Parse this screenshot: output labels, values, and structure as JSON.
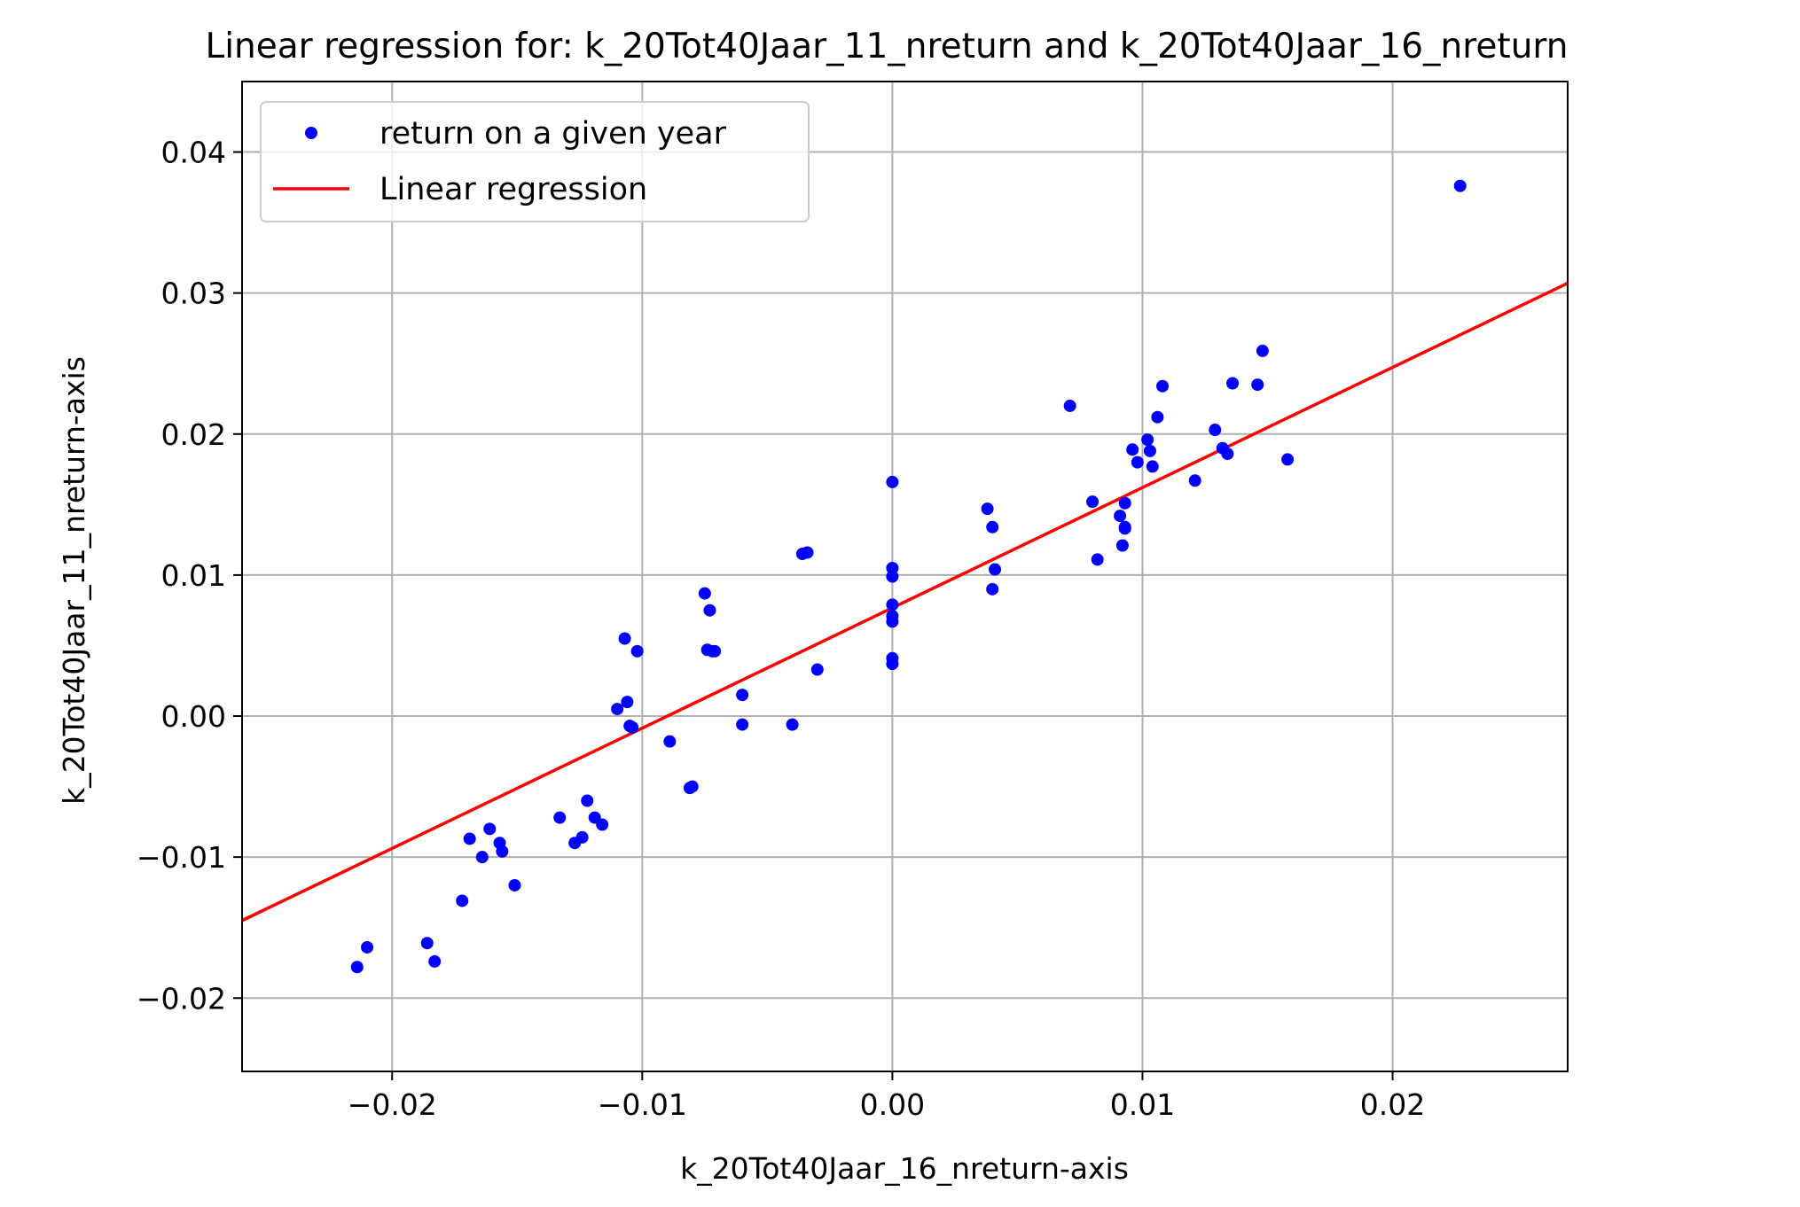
{
  "chart_data": {
    "type": "scatter",
    "title": "Linear regression for: k_20Tot40Jaar_11_nreturn and k_20Tot40Jaar_16_nreturn",
    "xlabel": "k_20Tot40Jaar_16_nreturn-axis",
    "ylabel": "k_20Tot40Jaar_11_nreturn-axis",
    "xlim": [
      -0.026,
      0.027
    ],
    "ylim": [
      -0.0252,
      0.045
    ],
    "xticks": [
      -0.02,
      -0.01,
      0.0,
      0.01,
      0.02
    ],
    "xtick_labels": [
      "−0.02",
      "−0.01",
      "0.00",
      "0.01",
      "0.02"
    ],
    "yticks": [
      -0.02,
      -0.01,
      0.0,
      0.01,
      0.02,
      0.03,
      0.04
    ],
    "ytick_labels": [
      "−0.02",
      "−0.01",
      "0.00",
      "0.01",
      "0.02",
      "0.03",
      "0.04"
    ],
    "grid": true,
    "legend_position": "top-left",
    "series": [
      {
        "name": "return on a given year",
        "type": "scatter",
        "color": "#0000ff",
        "points": [
          [
            -0.0214,
            -0.0178
          ],
          [
            -0.021,
            -0.0164
          ],
          [
            -0.0186,
            -0.0161
          ],
          [
            -0.0183,
            -0.0174
          ],
          [
            -0.0172,
            -0.0131
          ],
          [
            -0.0169,
            -0.0087
          ],
          [
            -0.0164,
            -0.01
          ],
          [
            -0.0161,
            -0.008
          ],
          [
            -0.0157,
            -0.009
          ],
          [
            -0.0156,
            -0.0096
          ],
          [
            -0.0151,
            -0.012
          ],
          [
            -0.0133,
            -0.0072
          ],
          [
            -0.0127,
            -0.009
          ],
          [
            -0.0124,
            -0.0086
          ],
          [
            -0.0122,
            -0.006
          ],
          [
            -0.0119,
            -0.0072
          ],
          [
            -0.0116,
            -0.0077
          ],
          [
            -0.011,
            0.0005
          ],
          [
            -0.0107,
            0.0055
          ],
          [
            -0.0106,
            0.001
          ],
          [
            -0.0105,
            -0.0007
          ],
          [
            -0.0104,
            -0.0008
          ],
          [
            -0.0102,
            0.0046
          ],
          [
            -0.0089,
            -0.0018
          ],
          [
            -0.0081,
            -0.0051
          ],
          [
            -0.008,
            -0.005
          ],
          [
            -0.0075,
            0.0087
          ],
          [
            -0.0074,
            0.0047
          ],
          [
            -0.0073,
            0.0075
          ],
          [
            -0.0072,
            0.0046
          ],
          [
            -0.0071,
            0.0046
          ],
          [
            -0.006,
            0.0015
          ],
          [
            -0.006,
            -0.0006
          ],
          [
            -0.004,
            -0.0006
          ],
          [
            -0.0036,
            0.0115
          ],
          [
            -0.0034,
            0.0116
          ],
          [
            -0.003,
            0.0033
          ],
          [
            0.0,
            0.0166
          ],
          [
            0.0,
            0.0105
          ],
          [
            0.0,
            0.0099
          ],
          [
            0.0,
            0.0079
          ],
          [
            0.0,
            0.0071
          ],
          [
            0.0,
            0.0067
          ],
          [
            0.0,
            0.0041
          ],
          [
            0.0,
            0.0037
          ],
          [
            0.0038,
            0.0147
          ],
          [
            0.004,
            0.0134
          ],
          [
            0.004,
            0.009
          ],
          [
            0.0041,
            0.0104
          ],
          [
            0.0071,
            0.022
          ],
          [
            0.008,
            0.0152
          ],
          [
            0.0082,
            0.0111
          ],
          [
            0.0091,
            0.0142
          ],
          [
            0.0092,
            0.0121
          ],
          [
            0.0093,
            0.0133
          ],
          [
            0.0093,
            0.0134
          ],
          [
            0.0093,
            0.0151
          ],
          [
            0.0096,
            0.0189
          ],
          [
            0.0098,
            0.018
          ],
          [
            0.0102,
            0.0196
          ],
          [
            0.0103,
            0.0188
          ],
          [
            0.0104,
            0.0177
          ],
          [
            0.0106,
            0.0212
          ],
          [
            0.0108,
            0.0234
          ],
          [
            0.0121,
            0.0167
          ],
          [
            0.0129,
            0.0203
          ],
          [
            0.0132,
            0.019
          ],
          [
            0.0134,
            0.0186
          ],
          [
            0.0136,
            0.0236
          ],
          [
            0.0146,
            0.0235
          ],
          [
            0.0148,
            0.0259
          ],
          [
            0.0158,
            0.0182
          ],
          [
            0.0227,
            0.0376
          ]
        ]
      },
      {
        "name": "Linear regression",
        "type": "line",
        "color": "#ff0000",
        "x": [
          -0.026,
          0.027
        ],
        "y": [
          -0.0145,
          0.0307
        ]
      }
    ]
  }
}
